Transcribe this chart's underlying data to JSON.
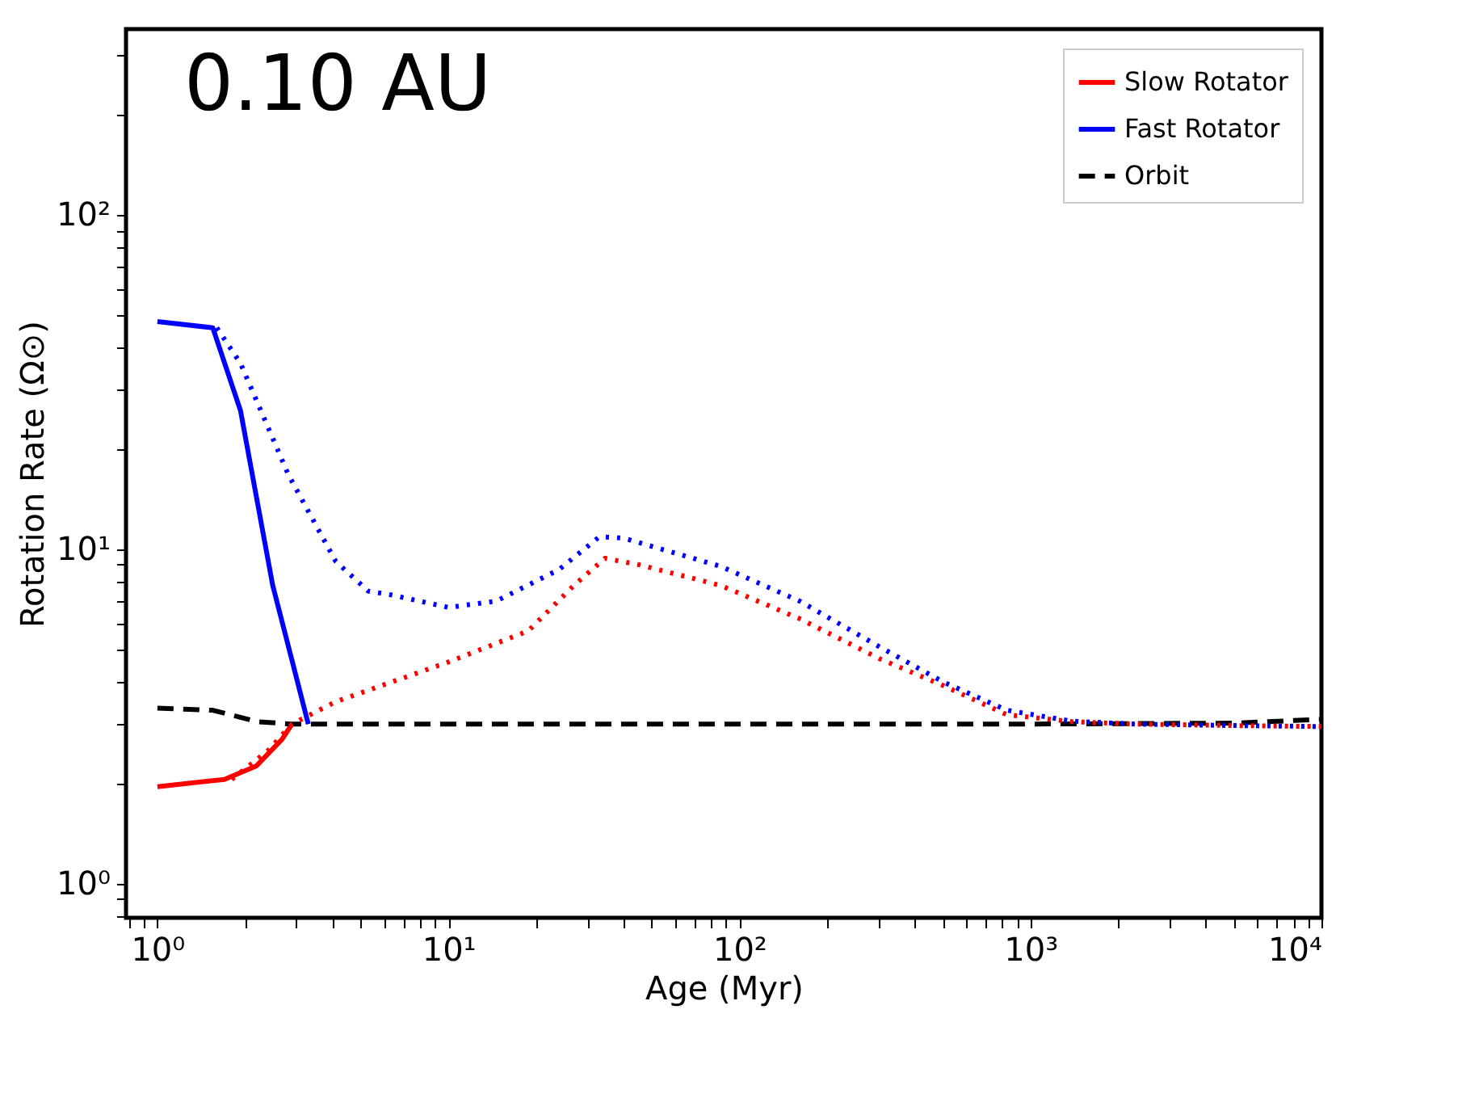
{
  "chart_data": {
    "type": "line",
    "xlabel": "Age (Myr)",
    "ylabel": "Rotation Rate (Ω⊙)",
    "annotations": [
      "0.10 AU"
    ],
    "log": "xy",
    "grid": false,
    "legend": "top right",
    "xlim": [
      0.78,
      10000
    ],
    "ylim": [
      0.79,
      360
    ],
    "xticks": [
      {
        "value": 1,
        "label": "10⁰"
      },
      {
        "value": 10,
        "label": "10¹"
      },
      {
        "value": 100,
        "label": "10²"
      },
      {
        "value": 1000,
        "label": "10³"
      },
      {
        "value": 10000,
        "label": "10⁴"
      },
      {
        "value": 0.8,
        "label": null
      },
      {
        "value": 0.9,
        "label": null
      },
      {
        "value": 2,
        "label": null
      },
      {
        "value": 3,
        "label": null
      },
      {
        "value": 4,
        "label": null
      },
      {
        "value": 5,
        "label": null
      },
      {
        "value": 6,
        "label": null
      },
      {
        "value": 7,
        "label": null
      },
      {
        "value": 8,
        "label": null
      },
      {
        "value": 9,
        "label": null
      },
      {
        "value": 20,
        "label": null
      },
      {
        "value": 30,
        "label": null
      },
      {
        "value": 40,
        "label": null
      },
      {
        "value": 50,
        "label": null
      },
      {
        "value": 60,
        "label": null
      },
      {
        "value": 70,
        "label": null
      },
      {
        "value": 80,
        "label": null
      },
      {
        "value": 90,
        "label": null
      },
      {
        "value": 200,
        "label": null
      },
      {
        "value": 300,
        "label": null
      },
      {
        "value": 400,
        "label": null
      },
      {
        "value": 500,
        "label": null
      },
      {
        "value": 600,
        "label": null
      },
      {
        "value": 700,
        "label": null
      },
      {
        "value": 800,
        "label": null
      },
      {
        "value": 900,
        "label": null
      },
      {
        "value": 2000,
        "label": null
      },
      {
        "value": 3000,
        "label": null
      },
      {
        "value": 4000,
        "label": null
      },
      {
        "value": 5000,
        "label": null
      },
      {
        "value": 6000,
        "label": null
      },
      {
        "value": 7000,
        "label": null
      },
      {
        "value": 8000,
        "label": null
      },
      {
        "value": 9000,
        "label": null
      }
    ],
    "yticks": [
      {
        "value": 1,
        "label": "10⁰"
      },
      {
        "value": 10,
        "label": "10¹"
      },
      {
        "value": 100,
        "label": "10²"
      },
      {
        "value": 0.8,
        "label": null
      },
      {
        "value": 0.9,
        "label": null
      },
      {
        "value": 2,
        "label": null
      },
      {
        "value": 3,
        "label": null
      },
      {
        "value": 4,
        "label": null
      },
      {
        "value": 5,
        "label": null
      },
      {
        "value": 6,
        "label": null
      },
      {
        "value": 7,
        "label": null
      },
      {
        "value": 8,
        "label": null
      },
      {
        "value": 9,
        "label": null
      },
      {
        "value": 20,
        "label": null
      },
      {
        "value": 30,
        "label": null
      },
      {
        "value": 40,
        "label": null
      },
      {
        "value": 50,
        "label": null
      },
      {
        "value": 60,
        "label": null
      },
      {
        "value": 70,
        "label": null
      },
      {
        "value": 80,
        "label": null
      },
      {
        "value": 90,
        "label": null
      },
      {
        "value": 200,
        "label": null
      },
      {
        "value": 300,
        "label": null
      }
    ],
    "series": [
      {
        "name": "Slow Rotator",
        "color": "#ff0000",
        "line_style": "solid",
        "x": [
          1,
          1.7,
          2.19,
          2.68,
          2.9
        ],
        "values": [
          1.95,
          2.05,
          2.25,
          2.7,
          3.0
        ]
      },
      {
        "name": "Fast Rotator",
        "color": "#0000ff",
        "line_style": "solid",
        "x": [
          1,
          1.55,
          1.93,
          2.49,
          2.93,
          3.3
        ],
        "values": [
          48,
          46,
          26,
          7.8,
          4.5,
          3.0
        ]
      },
      {
        "name": "Orbit",
        "color": "#000000",
        "line_style": "dashed",
        "x": [
          1,
          1.55,
          2.2,
          2.9,
          10,
          100,
          1000,
          5000,
          10000
        ],
        "values": [
          3.35,
          3.3,
          3.05,
          3.0,
          3.0,
          3.0,
          3.0,
          3.02,
          3.1
        ]
      },
      {
        "color": "#ff0000",
        "line_style": "dotted",
        "x": [
          1.8,
          2.4,
          2.9,
          4.1,
          10,
          18.8,
          27,
          34.5,
          45,
          86,
          161,
          304,
          505,
          830,
          1390,
          2300,
          5000,
          10000
        ],
        "values": [
          2.05,
          2.5,
          3.0,
          3.5,
          4.6,
          5.7,
          7.8,
          9.4,
          9.0,
          7.8,
          6.2,
          4.7,
          3.9,
          3.2,
          3.05,
          3.0,
          2.97,
          2.95
        ]
      },
      {
        "color": "#0000ff",
        "line_style": "dotted",
        "x": [
          1.6,
          1.93,
          2.82,
          4.1,
          5.3,
          6.4,
          10,
          14.6,
          24,
          33,
          40,
          86,
          161,
          304,
          505,
          830,
          1390,
          2300,
          5000,
          10000
        ],
        "values": [
          46,
          36,
          16.7,
          9.2,
          7.5,
          7.3,
          6.7,
          7.0,
          8.7,
          10.9,
          10.8,
          8.9,
          7.0,
          5.1,
          4.0,
          3.3,
          3.06,
          3.0,
          2.97,
          2.95
        ]
      }
    ]
  }
}
